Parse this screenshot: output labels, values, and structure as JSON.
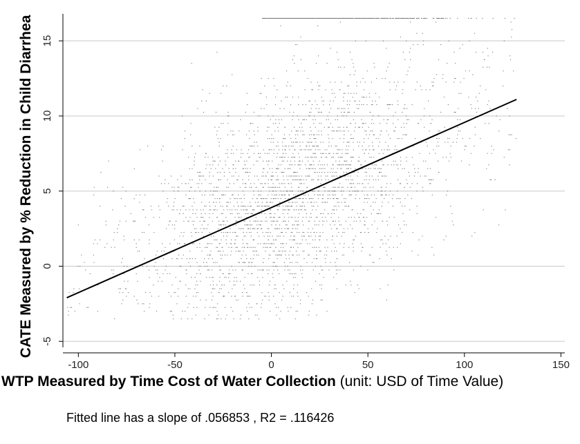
{
  "chart_data": {
    "type": "scatter",
    "xlabel_bold": "WTP Measured by Time Cost of Water Collection",
    "xlabel_rest": " (unit: USD of Time Value)",
    "ylabel": "CATE Measured by % Reduction in Child Diarrhea",
    "xlim": [
      -108,
      152
    ],
    "ylim": [
      -5.4,
      16.8
    ],
    "x_ticks": [
      -100,
      -50,
      0,
      50,
      100,
      150
    ],
    "y_ticks": [
      -5,
      0,
      5,
      10,
      15
    ],
    "grid": "horizontal",
    "point_color": "#555555",
    "line_color": "#000000",
    "scatter_extent": {
      "x": [
        -106,
        127
      ],
      "y": [
        -3.7,
        16.5
      ]
    },
    "fitted_line": {
      "x": [
        -106,
        127
      ],
      "y": [
        -2.1,
        11.1
      ]
    },
    "note": "Fitted line has a slope of .056853 , R2 = .116426"
  }
}
